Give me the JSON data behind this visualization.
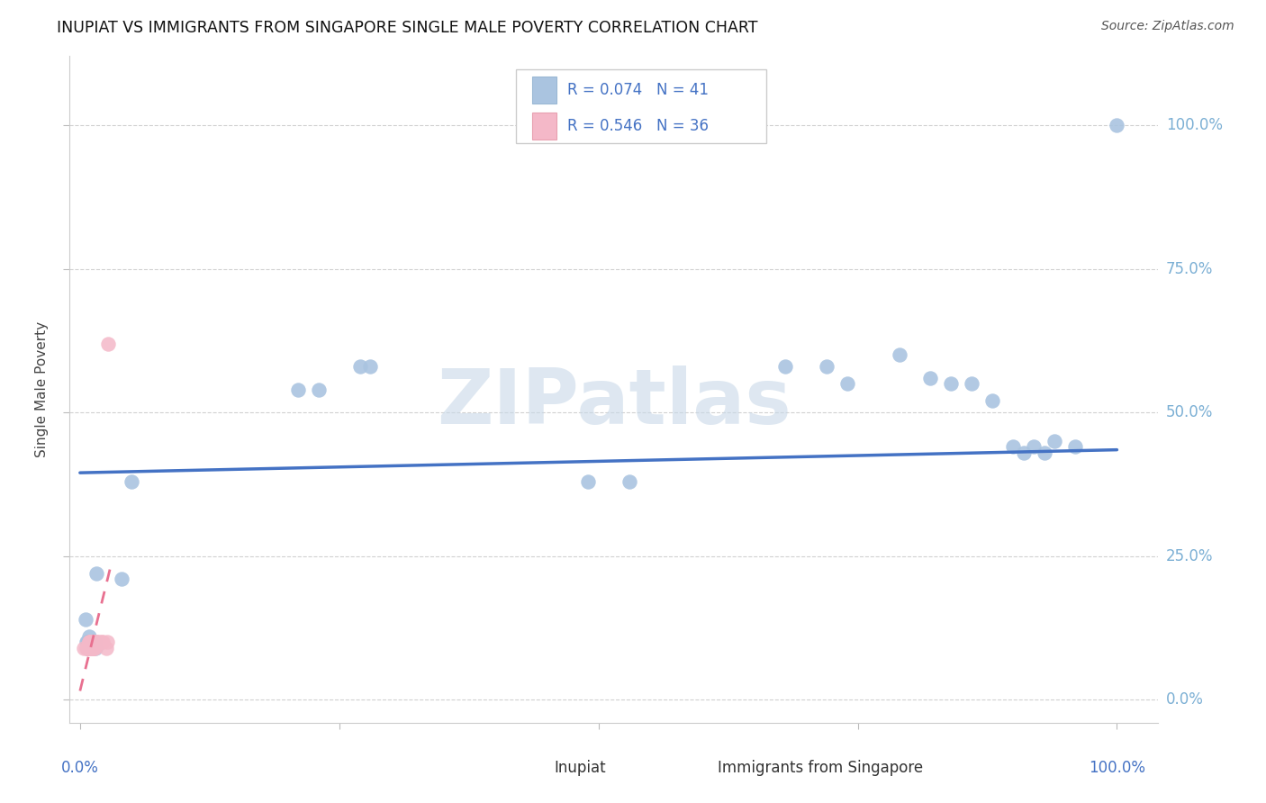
{
  "title": "INUPIAT VS IMMIGRANTS FROM SINGAPORE SINGLE MALE POVERTY CORRELATION CHART",
  "source": "Source: ZipAtlas.com",
  "ylabel": "Single Male Poverty",
  "legend_label1": "Inupiat",
  "legend_label2": "Immigrants from Singapore",
  "R1": 0.074,
  "N1": 41,
  "R2": 0.546,
  "N2": 36,
  "blue_color": "#aac4e0",
  "pink_color": "#f4b8c8",
  "blue_line_color": "#4472c4",
  "pink_line_color": "#e87090",
  "inupiat_x": [
    0.005,
    0.006,
    0.007,
    0.007,
    0.008,
    0.008,
    0.009,
    0.009,
    0.01,
    0.01,
    0.011,
    0.011,
    0.012,
    0.012,
    0.013,
    0.014,
    0.015,
    0.016,
    0.04,
    0.05,
    0.21,
    0.23,
    0.27,
    0.28,
    0.49,
    0.53,
    0.68,
    0.72,
    0.74,
    0.79,
    0.82,
    0.84,
    0.86,
    0.88,
    0.9,
    0.91,
    0.92,
    0.93,
    0.94,
    0.96,
    1.0
  ],
  "inupiat_y": [
    0.14,
    0.1,
    0.09,
    0.1,
    0.09,
    0.1,
    0.1,
    0.11,
    0.09,
    0.1,
    0.1,
    0.09,
    0.1,
    0.09,
    0.1,
    0.1,
    0.09,
    0.22,
    0.21,
    0.38,
    0.54,
    0.54,
    0.58,
    0.58,
    0.38,
    0.38,
    0.58,
    0.58,
    0.55,
    0.6,
    0.56,
    0.55,
    0.55,
    0.52,
    0.44,
    0.43,
    0.44,
    0.43,
    0.45,
    0.44,
    1.0
  ],
  "singapore_x": [
    0.004,
    0.006,
    0.007,
    0.008,
    0.009,
    0.009,
    0.009,
    0.009,
    0.01,
    0.01,
    0.01,
    0.01,
    0.01,
    0.01,
    0.011,
    0.011,
    0.011,
    0.011,
    0.011,
    0.012,
    0.012,
    0.012,
    0.013,
    0.013,
    0.013,
    0.014,
    0.014,
    0.015,
    0.016,
    0.017,
    0.018,
    0.021,
    0.022,
    0.025,
    0.026,
    0.027
  ],
  "singapore_y": [
    0.09,
    0.09,
    0.09,
    0.09,
    0.09,
    0.09,
    0.1,
    0.1,
    0.09,
    0.09,
    0.1,
    0.1,
    0.1,
    0.1,
    0.09,
    0.09,
    0.1,
    0.1,
    0.1,
    0.09,
    0.09,
    0.1,
    0.09,
    0.1,
    0.1,
    0.09,
    0.1,
    0.1,
    0.1,
    0.1,
    0.1,
    0.1,
    0.1,
    0.09,
    0.1,
    0.62
  ],
  "xlim": [
    -0.01,
    1.04
  ],
  "ylim": [
    -0.04,
    1.12
  ],
  "y_ticks": [
    0.0,
    0.25,
    0.5,
    0.75,
    1.0
  ],
  "y_tick_labels": [
    "0.0%",
    "25.0%",
    "50.0%",
    "75.0%",
    "100.0%"
  ],
  "x_tick_labels": [
    "0.0%",
    "100.0%"
  ],
  "watermark": "ZIPatlas",
  "watermark_color": "#c8d8e8"
}
